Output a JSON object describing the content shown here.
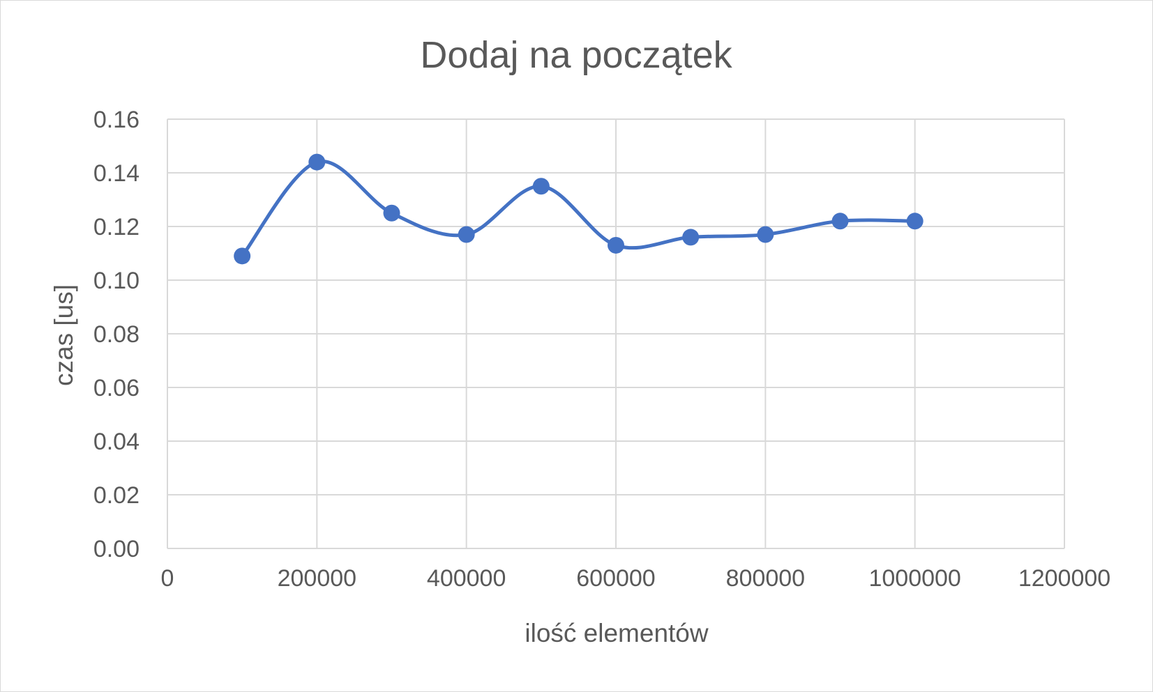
{
  "chart_data": {
    "type": "line",
    "title": "Dodaj na początek",
    "xlabel": "ilość elementów",
    "ylabel": "czas [us]",
    "xlim": [
      0,
      1200000
    ],
    "ylim": [
      0,
      0.16
    ],
    "x_ticks": [
      "0",
      "200000",
      "400000",
      "600000",
      "800000",
      "1000000",
      "1200000"
    ],
    "y_ticks": [
      "0.00",
      "0.02",
      "0.04",
      "0.06",
      "0.08",
      "0.10",
      "0.12",
      "0.14",
      "0.16"
    ],
    "grid": true,
    "smooth": true,
    "series": [
      {
        "x": [
          100000,
          200000,
          300000,
          400000,
          500000,
          600000,
          700000,
          800000,
          900000,
          1000000
        ],
        "y": [
          0.109,
          0.144,
          0.125,
          0.117,
          0.135,
          0.113,
          0.116,
          0.117,
          0.122,
          0.122
        ],
        "color": "#4472c4"
      }
    ]
  }
}
